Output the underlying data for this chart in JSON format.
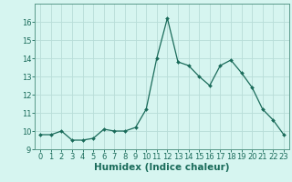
{
  "x": [
    0,
    1,
    2,
    3,
    4,
    5,
    6,
    7,
    8,
    9,
    10,
    11,
    12,
    13,
    14,
    15,
    16,
    17,
    18,
    19,
    20,
    21,
    22,
    23
  ],
  "y": [
    9.8,
    9.8,
    10.0,
    9.5,
    9.5,
    9.6,
    10.1,
    10.0,
    10.0,
    10.2,
    11.2,
    14.0,
    16.2,
    13.8,
    13.6,
    13.0,
    12.5,
    13.6,
    13.9,
    13.2,
    12.4,
    11.2,
    10.6,
    9.8
  ],
  "line_color": "#1a6b5a",
  "marker": "D",
  "marker_size": 2.0,
  "bg_color": "#d6f5f0",
  "grid_color": "#b8ddd8",
  "xlabel": "Humidex (Indice chaleur)",
  "ylim": [
    9,
    17
  ],
  "xlim": [
    -0.5,
    23.5
  ],
  "yticks": [
    9,
    10,
    11,
    12,
    13,
    14,
    15,
    16
  ],
  "xticks": [
    0,
    1,
    2,
    3,
    4,
    5,
    6,
    7,
    8,
    9,
    10,
    11,
    12,
    13,
    14,
    15,
    16,
    17,
    18,
    19,
    20,
    21,
    22,
    23
  ],
  "tick_color": "#1a6b5a",
  "tick_fontsize": 6.0,
  "xlabel_fontsize": 7.5,
  "xlabel_color": "#1a6b5a",
  "axis_color": "#5a9a8a",
  "linewidth": 0.9
}
